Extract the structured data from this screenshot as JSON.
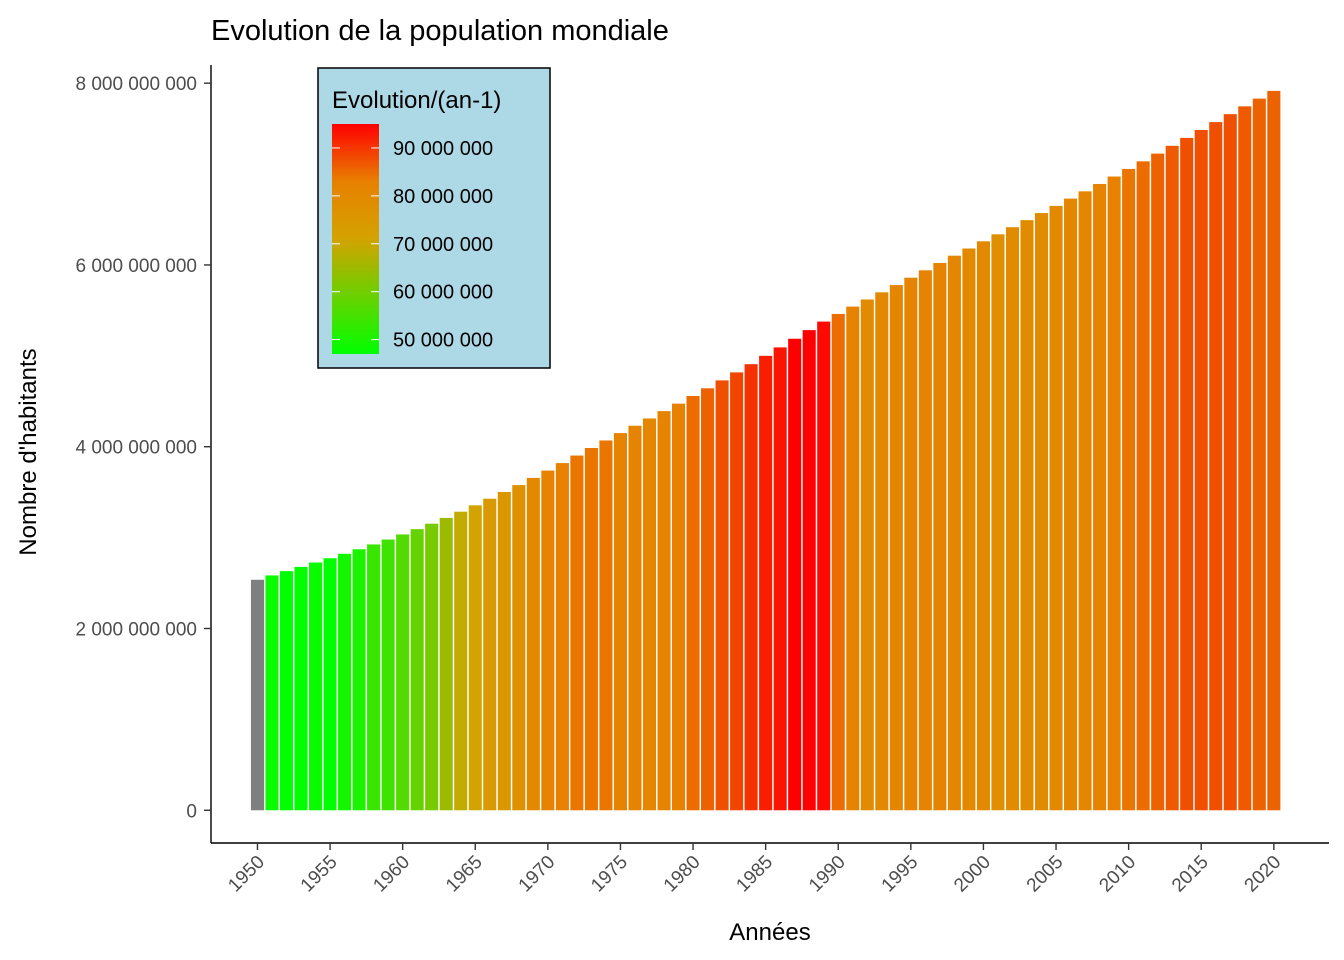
{
  "chart_data": {
    "type": "bar",
    "title": "Evolution de la population mondiale",
    "xlabel": "Années",
    "ylabel": "Nombre d'habitants",
    "ylim": [
      -360000000,
      8200000000
    ],
    "xlim": [
      1946.8,
      2023.8
    ],
    "x_ticks": [
      1950,
      1955,
      1960,
      1965,
      1970,
      1975,
      1980,
      1985,
      1990,
      1995,
      2000,
      2005,
      2010,
      2015,
      2020
    ],
    "x_tick_labels": [
      "1950",
      "1955",
      "1960",
      "1965",
      "1970",
      "1975",
      "1980",
      "1985",
      "1990",
      "1995",
      "2000",
      "2005",
      "2010",
      "2015",
      "2020"
    ],
    "y_ticks": [
      0,
      2000000000,
      4000000000,
      6000000000,
      8000000000
    ],
    "y_tick_labels": [
      "0",
      "2 000 000 000",
      "4 000 000 000",
      "6 000 000 000",
      "8 000 000 000"
    ],
    "grid": false,
    "x": [
      1950,
      1951,
      1952,
      1953,
      1954,
      1955,
      1956,
      1957,
      1958,
      1959,
      1960,
      1961,
      1962,
      1963,
      1964,
      1965,
      1966,
      1967,
      1968,
      1969,
      1970,
      1971,
      1972,
      1973,
      1974,
      1975,
      1976,
      1977,
      1978,
      1979,
      1980,
      1981,
      1982,
      1983,
      1984,
      1985,
      1986,
      1987,
      1988,
      1989,
      1990,
      1991,
      1992,
      1993,
      1994,
      1995,
      1996,
      1997,
      1998,
      1999,
      2000,
      2001,
      2002,
      2003,
      2004,
      2005,
      2006,
      2007,
      2008,
      2009,
      2010,
      2011,
      2012,
      2013,
      2014,
      2015,
      2016,
      2017,
      2018,
      2019,
      2020
    ],
    "values": [
      2536000000,
      2584000000,
      2631000000,
      2678000000,
      2726000000,
      2773000000,
      2822000000,
      2872000000,
      2925000000,
      2979000000,
      3035000000,
      3093000000,
      3153000000,
      3217000000,
      3285000000,
      3355000000,
      3428000000,
      3502000000,
      3578000000,
      3657000000,
      3738000000,
      3820000000,
      3903000000,
      3986000000,
      4069000000,
      4150000000,
      4231000000,
      4311000000,
      4392000000,
      4474000000,
      4558000000,
      4643000000,
      4730000000,
      4818000000,
      4908000000,
      5000000000,
      5093000000,
      5188000000,
      5283000000,
      5377000000,
      5461000000,
      5542000000,
      5620000000,
      5699000000,
      5779000000,
      5860000000,
      5941000000,
      6022000000,
      6102000000,
      6181000000,
      6260000000,
      6337000000,
      6415000000,
      6493000000,
      6571000000,
      6650000000,
      6730000000,
      6810000000,
      6891000000,
      6973000000,
      7056000000,
      7140000000,
      7225000000,
      7311000000,
      7398000000,
      7485000000,
      7572000000,
      7659000000,
      7745000000,
      7830000000,
      7915000000
    ],
    "fill_variable": {
      "name": "Evolution/(an-1)",
      "values": [
        null,
        48000000,
        47000000,
        47000000,
        48000000,
        47000000,
        49000000,
        50000000,
        53000000,
        54000000,
        56000000,
        58000000,
        60000000,
        64000000,
        68000000,
        70000000,
        73000000,
        74000000,
        76000000,
        79000000,
        81000000,
        82000000,
        83000000,
        83000000,
        83000000,
        81000000,
        81000000,
        80000000,
        81000000,
        82000000,
        84000000,
        85000000,
        87000000,
        88000000,
        90000000,
        92000000,
        93000000,
        95000000,
        95000000,
        94000000,
        84000000,
        81000000,
        78000000,
        79000000,
        80000000,
        81000000,
        81000000,
        81000000,
        80000000,
        79000000,
        79000000,
        77000000,
        78000000,
        78000000,
        78000000,
        79000000,
        80000000,
        80000000,
        81000000,
        82000000,
        83000000,
        84000000,
        85000000,
        86000000,
        87000000,
        87000000,
        87000000,
        87000000,
        86000000,
        85000000,
        85000000
      ],
      "na_color": "#7f7f7f",
      "color_stops": [
        {
          "value": 47000000,
          "color": "#00ff00"
        },
        {
          "value": 70000000,
          "color": "#d3a300"
        },
        {
          "value": 82000000,
          "color": "#e88000"
        },
        {
          "value": 95000000,
          "color": "#ff0000"
        }
      ]
    },
    "legend": {
      "title": "Evolution/(an-1)",
      "placement": "top-left, inside plot",
      "background": "#add8e6",
      "labels": [
        "90 000 000",
        "80 000 000",
        "70 000 000",
        "60 000 000",
        "50 000 000"
      ],
      "label_values": [
        90000000,
        80000000,
        70000000,
        60000000,
        50000000
      ]
    }
  }
}
